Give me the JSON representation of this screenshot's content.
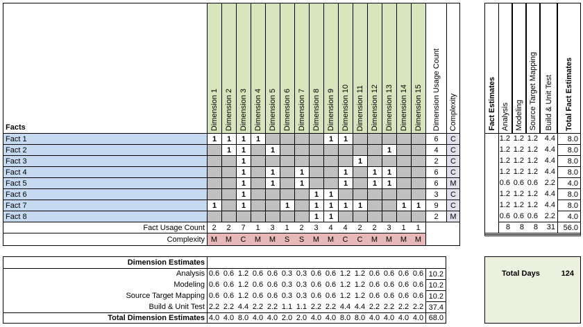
{
  "matrix": {
    "facts_header": "Facts",
    "dimensions": [
      "Dimension 1",
      "Dimension 2",
      "Dimension 3",
      "Dimension 4",
      "Dimension 5",
      "Dimension 6",
      "Dimension 7",
      "Dimension 8",
      "Dimension 9",
      "Dimension 10",
      "Dimension 11",
      "Dimension 12",
      "Dimension 13",
      "Dimension 14",
      "Dimension 15"
    ],
    "usage_count_header": "Dimension Usage Count",
    "complexity_header": "Complexity",
    "facts": [
      {
        "name": "Fact 1",
        "usage": [
          1,
          1,
          1,
          1,
          0,
          0,
          0,
          0,
          1,
          1,
          0,
          0,
          0,
          0,
          0
        ],
        "usage_count": "6",
        "complexity": "C"
      },
      {
        "name": "Fact 2",
        "usage": [
          0,
          1,
          1,
          0,
          1,
          0,
          0,
          0,
          0,
          0,
          0,
          0,
          1,
          0,
          0
        ],
        "usage_count": "4",
        "complexity": "C"
      },
      {
        "name": "Fact 3",
        "usage": [
          0,
          0,
          1,
          0,
          0,
          0,
          0,
          0,
          0,
          0,
          1,
          0,
          0,
          0,
          0
        ],
        "usage_count": "2",
        "complexity": "C"
      },
      {
        "name": "Fact 4",
        "usage": [
          0,
          0,
          1,
          0,
          1,
          0,
          1,
          0,
          0,
          1,
          0,
          1,
          1,
          0,
          0
        ],
        "usage_count": "6",
        "complexity": "C"
      },
      {
        "name": "Fact 5",
        "usage": [
          0,
          0,
          1,
          0,
          1,
          0,
          1,
          0,
          0,
          1,
          0,
          1,
          1,
          0,
          0
        ],
        "usage_count": "6",
        "complexity": "M"
      },
      {
        "name": "Fact 6",
        "usage": [
          0,
          0,
          1,
          0,
          0,
          0,
          0,
          1,
          1,
          0,
          0,
          0,
          0,
          0,
          0
        ],
        "usage_count": "3",
        "complexity": "C"
      },
      {
        "name": "Fact 7",
        "usage": [
          1,
          0,
          1,
          0,
          0,
          1,
          0,
          1,
          1,
          1,
          1,
          0,
          0,
          1,
          1
        ],
        "usage_count": "9",
        "complexity": "C"
      },
      {
        "name": "Fact 8",
        "usage": [
          0,
          0,
          0,
          0,
          0,
          0,
          0,
          1,
          1,
          0,
          0,
          0,
          0,
          0,
          0
        ],
        "usage_count": "2",
        "complexity": "M"
      }
    ],
    "usage_mark": "1",
    "fact_usage_count_label": "Fact Usage Count",
    "fact_usage_counts": [
      "2",
      "2",
      "7",
      "1",
      "3",
      "1",
      "2",
      "3",
      "4",
      "4",
      "2",
      "2",
      "3",
      "1",
      "1"
    ],
    "complexity_label": "Complexity",
    "dimension_complexity": [
      "M",
      "M",
      "C",
      "M",
      "M",
      "S",
      "S",
      "M",
      "M",
      "C",
      "C",
      "M",
      "M",
      "M",
      "M"
    ]
  },
  "fact_estimates": {
    "title": "Fact Estimates",
    "columns": [
      "Analysis",
      "Modeling",
      "Source Target Mapping",
      "Build & Unit Test"
    ],
    "total_header": "Total Fact Estimates",
    "rows": [
      [
        "1.2",
        "1.2",
        "1.2",
        "4.4",
        "8.0"
      ],
      [
        "1.2",
        "1.2",
        "1.2",
        "4.4",
        "8.0"
      ],
      [
        "1.2",
        "1.2",
        "1.2",
        "4.4",
        "8.0"
      ],
      [
        "1.2",
        "1.2",
        "1.2",
        "4.4",
        "8.0"
      ],
      [
        "0.6",
        "0.6",
        "0.6",
        "2.2",
        "4.0"
      ],
      [
        "1.2",
        "1.2",
        "1.2",
        "4.4",
        "8.0"
      ],
      [
        "1.2",
        "1.2",
        "1.2",
        "4.4",
        "8.0"
      ],
      [
        "0.6",
        "0.6",
        "0.6",
        "2.2",
        "4.0"
      ]
    ],
    "totals": [
      "8",
      "8",
      "8",
      "31",
      "56.0"
    ]
  },
  "dimension_estimates": {
    "title": "Dimension Estimates",
    "rows": [
      {
        "label": "Analysis",
        "values": [
          "0.6",
          "0.6",
          "1.2",
          "0.6",
          "0.6",
          "0.3",
          "0.3",
          "0.6",
          "0.6",
          "1.2",
          "1.2",
          "0.6",
          "0.6",
          "0.6",
          "0.6"
        ],
        "total": "10.2"
      },
      {
        "label": "Modeling",
        "values": [
          "0.6",
          "0.6",
          "1.2",
          "0.6",
          "0.6",
          "0.3",
          "0.3",
          "0.6",
          "0.6",
          "1.2",
          "1.2",
          "0.6",
          "0.6",
          "0.6",
          "0.6"
        ],
        "total": "10.2"
      },
      {
        "label": "Source Target Mapping",
        "values": [
          "0.6",
          "0.6",
          "1.2",
          "0.6",
          "0.6",
          "0.3",
          "0.3",
          "0.6",
          "0.6",
          "1.2",
          "1.2",
          "0.6",
          "0.6",
          "0.6",
          "0.6"
        ],
        "total": "10.2"
      },
      {
        "label": "Build & Unit Test",
        "values": [
          "2.2",
          "2.2",
          "4.4",
          "2.2",
          "2.2",
          "1.1",
          "1.1",
          "2.2",
          "2.2",
          "4.4",
          "4.4",
          "2.2",
          "2.2",
          "2.2",
          "2.2"
        ],
        "total": "37.4"
      }
    ],
    "total_row": {
      "label": "Total Dimension Estimates",
      "values": [
        "4.0",
        "4.0",
        "8.0",
        "4.0",
        "4.0",
        "2.0",
        "2.0",
        "4.0",
        "4.0",
        "8.0",
        "8.0",
        "4.0",
        "4.0",
        "4.0",
        "4.0"
      ],
      "total": "68.0"
    }
  },
  "total_days": {
    "label": "Total Days",
    "value": "124"
  },
  "colors": {
    "fact_bg": "#c5d9f1",
    "dim_header_bg": "#d8e4bc",
    "unused_cell": "#c0c0c0",
    "fact_complexity_bg": "#e4dfec",
    "dim_complexity_bg": "#e6b8b7",
    "total_days_bg": "#ebf1de"
  }
}
